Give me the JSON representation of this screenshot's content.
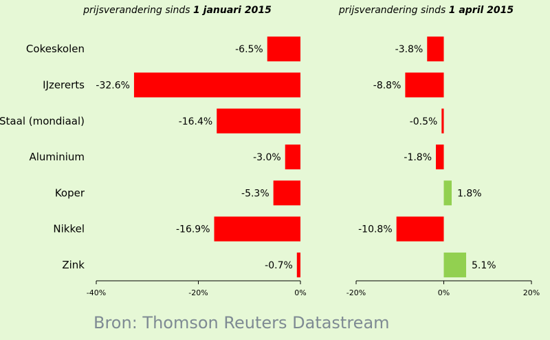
{
  "source": "Bron: Thomson Reuters Datastream",
  "chart_data": [
    {
      "type": "bar",
      "orientation": "horizontal",
      "title_prefix": "prijsverandering sinds ",
      "title_bold": "1 januari 2015",
      "categories": [
        "Cokeskolen",
        "IJzererts",
        "Staal (mondiaal)",
        "Aluminium",
        "Koper",
        "Nikkel",
        "Zink"
      ],
      "values": [
        -6.5,
        -32.6,
        -16.4,
        -3.0,
        -5.3,
        -16.9,
        -0.7
      ],
      "value_labels": [
        "-6.5%",
        "-32.6%",
        "-16.4%",
        "-3.0%",
        "-5.3%",
        "-16.9%",
        "-0.7%"
      ],
      "xlim": [
        -40,
        0
      ],
      "xticks": [
        -40,
        -20,
        0
      ],
      "xtick_labels": [
        "-40%",
        "-20%",
        "0%"
      ],
      "colors": {
        "negative": "#ff0000",
        "positive": "#92d050"
      },
      "grid": false
    },
    {
      "type": "bar",
      "orientation": "horizontal",
      "title_prefix": "prijsverandering sinds ",
      "title_bold": "1 april 2015",
      "categories": [
        "Cokeskolen",
        "IJzererts",
        "Staal (mondiaal)",
        "Aluminium",
        "Koper",
        "Nikkel",
        "Zink"
      ],
      "values": [
        -3.8,
        -8.8,
        -0.5,
        -1.8,
        1.8,
        -10.8,
        5.1
      ],
      "value_labels": [
        "-3.8%",
        "-8.8%",
        "-0.5%",
        "-1.8%",
        "1.8%",
        "-10.8%",
        "5.1%"
      ],
      "xlim": [
        -20,
        20
      ],
      "xticks": [
        -20,
        0,
        20
      ],
      "xtick_labels": [
        "-20%",
        "0%",
        "20%"
      ],
      "colors": {
        "negative": "#ff0000",
        "positive": "#92d050"
      },
      "grid": false
    }
  ]
}
